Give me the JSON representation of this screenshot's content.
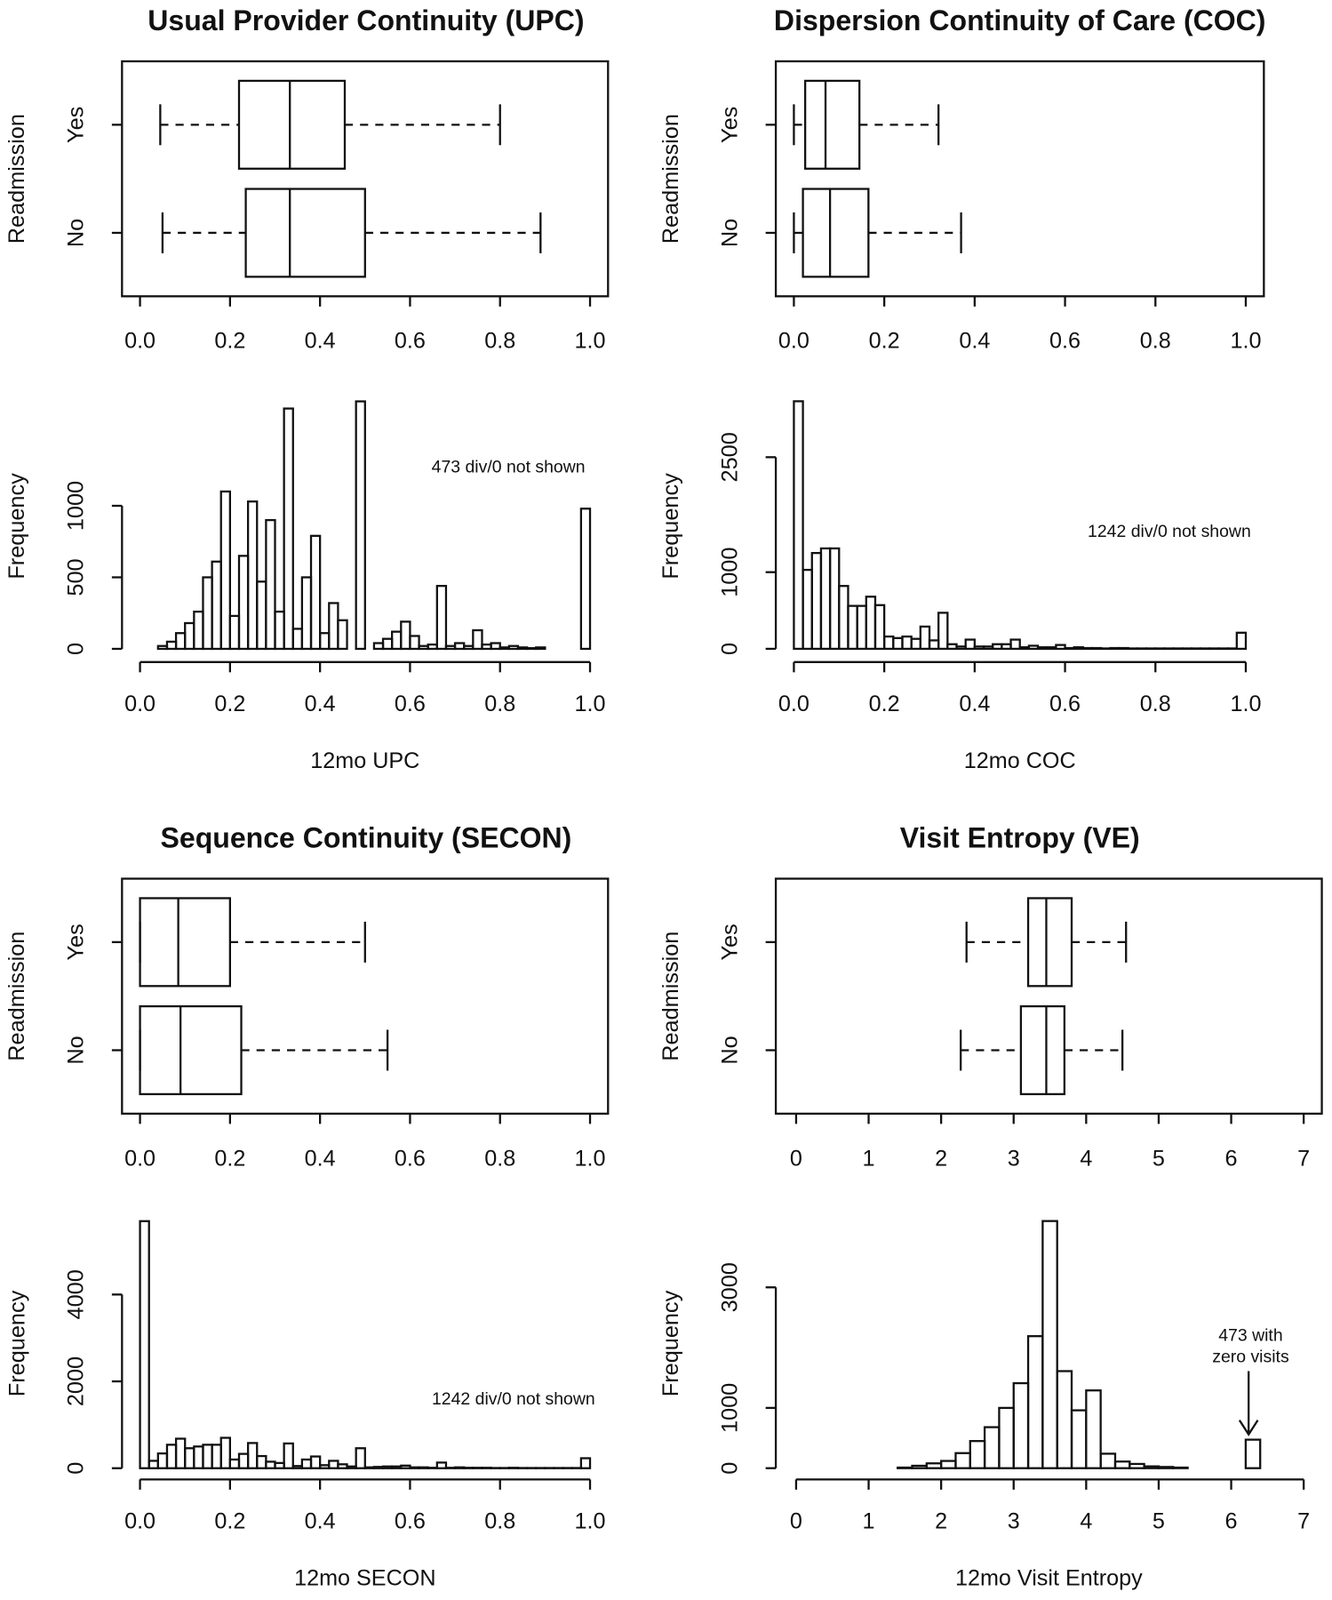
{
  "chart_data": [
    {
      "type": "box",
      "title": "Usual Provider Continuity (UPC)",
      "ylabel": "Readmission",
      "categories": [
        "Yes",
        "No"
      ],
      "boxes": [
        {
          "whislo": 0.045,
          "q1": 0.22,
          "med": 0.333,
          "q3": 0.455,
          "whishi": 0.8
        },
        {
          "whislo": 0.05,
          "q1": 0.235,
          "med": 0.333,
          "q3": 0.5,
          "whishi": 0.89
        }
      ],
      "xlim": [
        -0.04,
        1.04
      ],
      "xticks": [
        {
          "value": 0,
          "label": "0.0"
        },
        0.2,
        0.4,
        0.6,
        0.8,
        {
          "value": 1,
          "label": "1.0"
        }
      ]
    },
    {
      "type": "histogram",
      "xlabel": "12mo UPC",
      "ylabel": "Frequency",
      "annotation": [
        "473 div/0 not shown"
      ],
      "bins": [
        0,
        0.02,
        0.04,
        0.06,
        0.08,
        0.1,
        0.12,
        0.14,
        0.16,
        0.18,
        0.2,
        0.22,
        0.24,
        0.26,
        0.28,
        0.3,
        0.32,
        0.34,
        0.36,
        0.38,
        0.4,
        0.42,
        0.44,
        0.46,
        0.48,
        0.5,
        0.52,
        0.54,
        0.56,
        0.58,
        0.6,
        0.62,
        0.64,
        0.66,
        0.68,
        0.7,
        0.72,
        0.74,
        0.76,
        0.78,
        0.8,
        0.82,
        0.84,
        0.86,
        0.88,
        0.9,
        0.92,
        0.94,
        0.96,
        0.98,
        1
      ],
      "counts": [
        0,
        0,
        20,
        50,
        110,
        180,
        260,
        500,
        610,
        1100,
        230,
        650,
        1030,
        470,
        900,
        260,
        1680,
        140,
        500,
        790,
        110,
        320,
        200,
        0,
        1730,
        0,
        40,
        70,
        120,
        190,
        90,
        20,
        30,
        440,
        20,
        40,
        20,
        130,
        30,
        40,
        10,
        20,
        10,
        5,
        10,
        0,
        0,
        0,
        0,
        980
      ],
      "xlim": [
        -0.04,
        1.04
      ],
      "xticks": [
        {
          "value": 0,
          "label": "0.0"
        },
        0.2,
        0.4,
        0.6,
        0.8,
        {
          "value": 1,
          "label": "1.0"
        }
      ],
      "ylim": [
        -71,
        1786
      ],
      "yticks": [
        0,
        500,
        1000
      ]
    },
    {
      "type": "box",
      "title": "Dispersion Continuity of Care (COC)",
      "ylabel": "Readmission",
      "categories": [
        "Yes",
        "No"
      ],
      "boxes": [
        {
          "whislo": 0,
          "q1": 0.025,
          "med": 0.07,
          "q3": 0.145,
          "whishi": 0.32
        },
        {
          "whislo": 0,
          "q1": 0.02,
          "med": 0.08,
          "q3": 0.165,
          "whishi": 0.37
        }
      ],
      "xlim": [
        -0.04,
        1.04
      ],
      "xticks": [
        {
          "value": 0,
          "label": "0.0"
        },
        0.2,
        0.4,
        0.6,
        0.8,
        {
          "value": 1,
          "label": "1.0"
        }
      ]
    },
    {
      "type": "histogram",
      "xlabel": "12mo COC",
      "ylabel": "Frequency",
      "annotation": [
        "1242 div/0 not shown"
      ],
      "bins": [
        0,
        0.02,
        0.04,
        0.06,
        0.08,
        0.1,
        0.12,
        0.14,
        0.16,
        0.18,
        0.2,
        0.22,
        0.24,
        0.26,
        0.28,
        0.3,
        0.32,
        0.34,
        0.36,
        0.38,
        0.4,
        0.42,
        0.44,
        0.46,
        0.48,
        0.5,
        0.52,
        0.54,
        0.56,
        0.58,
        0.6,
        0.62,
        0.64,
        0.66,
        0.68,
        0.7,
        0.72,
        0.74,
        0.76,
        0.78,
        0.8,
        0.82,
        0.84,
        0.86,
        0.88,
        0.9,
        0.92,
        0.94,
        0.96,
        0.98,
        1
      ],
      "counts": [
        3230,
        1030,
        1250,
        1310,
        1310,
        820,
        560,
        560,
        680,
        570,
        160,
        140,
        160,
        130,
        290,
        110,
        470,
        60,
        30,
        120,
        30,
        30,
        60,
        60,
        120,
        20,
        40,
        20,
        20,
        50,
        10,
        20,
        10,
        10,
        5,
        10,
        10,
        5,
        5,
        5,
        5,
        5,
        5,
        5,
        5,
        5,
        5,
        5,
        5,
        210
      ],
      "xlim": [
        -0.04,
        1.04
      ],
      "xticks": [
        {
          "value": 0,
          "label": "0.0"
        },
        0.2,
        0.4,
        0.6,
        0.8,
        {
          "value": 1,
          "label": "1.0"
        }
      ],
      "ylim": [
        -133,
        3333
      ],
      "yticks": [
        0,
        1000,
        2500
      ]
    },
    {
      "type": "box",
      "title": "Sequence Continuity (SECON)",
      "ylabel": "Readmission",
      "categories": [
        "Yes",
        "No"
      ],
      "boxes": [
        {
          "whislo": 0,
          "q1": 0,
          "med": 0.085,
          "q3": 0.2,
          "whishi": 0.5
        },
        {
          "whislo": 0,
          "q1": 0,
          "med": 0.09,
          "q3": 0.225,
          "whishi": 0.55
        }
      ],
      "xlim": [
        -0.04,
        1.04
      ],
      "xticks": [
        {
          "value": 0,
          "label": "0.0"
        },
        0.2,
        0.4,
        0.6,
        0.8,
        {
          "value": 1,
          "label": "1.0"
        }
      ]
    },
    {
      "type": "histogram",
      "xlabel": "12mo SECON",
      "ylabel": "Frequency",
      "annotation": [
        "1242 div/0 not shown"
      ],
      "bins": [
        0,
        0.02,
        0.04,
        0.06,
        0.08,
        0.1,
        0.12,
        0.14,
        0.16,
        0.18,
        0.2,
        0.22,
        0.24,
        0.26,
        0.28,
        0.3,
        0.32,
        0.34,
        0.36,
        0.38,
        0.4,
        0.42,
        0.44,
        0.46,
        0.48,
        0.5,
        0.52,
        0.54,
        0.56,
        0.58,
        0.6,
        0.62,
        0.64,
        0.66,
        0.68,
        0.7,
        0.72,
        0.74,
        0.76,
        0.78,
        0.8,
        0.82,
        0.84,
        0.86,
        0.88,
        0.9,
        0.92,
        0.94,
        0.96,
        0.98,
        1
      ],
      "counts": [
        5690,
        170,
        340,
        540,
        680,
        460,
        500,
        540,
        540,
        700,
        200,
        330,
        580,
        280,
        150,
        120,
        570,
        50,
        200,
        270,
        70,
        170,
        90,
        40,
        460,
        20,
        30,
        40,
        40,
        60,
        20,
        20,
        10,
        130,
        10,
        20,
        10,
        10,
        10,
        5,
        5,
        10,
        5,
        5,
        5,
        5,
        5,
        5,
        5,
        230
      ],
      "xlim": [
        -0.04,
        1.04
      ],
      "xticks": [
        {
          "value": 0,
          "label": "0.0"
        },
        0.2,
        0.4,
        0.6,
        0.8,
        {
          "value": 1,
          "label": "1.0"
        }
      ],
      "ylim": [
        -188,
        5930
      ],
      "yticks": [
        0,
        2000,
        4000
      ]
    },
    {
      "type": "box",
      "title": "Visit Entropy (VE)",
      "ylabel": "Readmission",
      "categories": [
        "Yes",
        "No"
      ],
      "boxes": [
        {
          "whislo": 2.35,
          "q1": 3.2,
          "med": 3.45,
          "q3": 3.8,
          "whishi": 4.55
        },
        {
          "whislo": 2.27,
          "q1": 3.1,
          "med": 3.45,
          "q3": 3.7,
          "whishi": 4.5
        }
      ],
      "xlim": [
        -0.28,
        7.25
      ],
      "xticks": [
        0,
        1,
        2,
        3,
        4,
        5,
        6,
        7
      ]
    },
    {
      "type": "histogram",
      "xlabel": "12mo Visit Entropy",
      "ylabel": "Frequency",
      "annotation": [
        "473 with",
        "zero visits"
      ],
      "bins": [
        0,
        0.2,
        0.4,
        0.6,
        0.8,
        1,
        1.2,
        1.4,
        1.6,
        1.8,
        2,
        2.2,
        2.4,
        2.6,
        2.8,
        3,
        3.2,
        3.4,
        3.6,
        3.8,
        4,
        4.2,
        4.4,
        4.6,
        4.8,
        5,
        5.2,
        5.4,
        5.6,
        5.8,
        6,
        6.2,
        6.4,
        6.6,
        6.8,
        7
      ],
      "counts": [
        0,
        0,
        0,
        0,
        0,
        0,
        0,
        10,
        40,
        80,
        120,
        250,
        450,
        680,
        1000,
        1410,
        2190,
        4100,
        1610,
        960,
        1290,
        240,
        110,
        70,
        30,
        20,
        10,
        0,
        0,
        0,
        0,
        473,
        0,
        0,
        0
      ],
      "xlim": [
        -0.28,
        7.25
      ],
      "xticks": [
        0,
        1,
        2,
        3,
        4,
        5,
        6,
        7
      ],
      "ylim": [
        -136,
        4271
      ],
      "yticks": [
        0,
        1000,
        3000
      ]
    }
  ]
}
